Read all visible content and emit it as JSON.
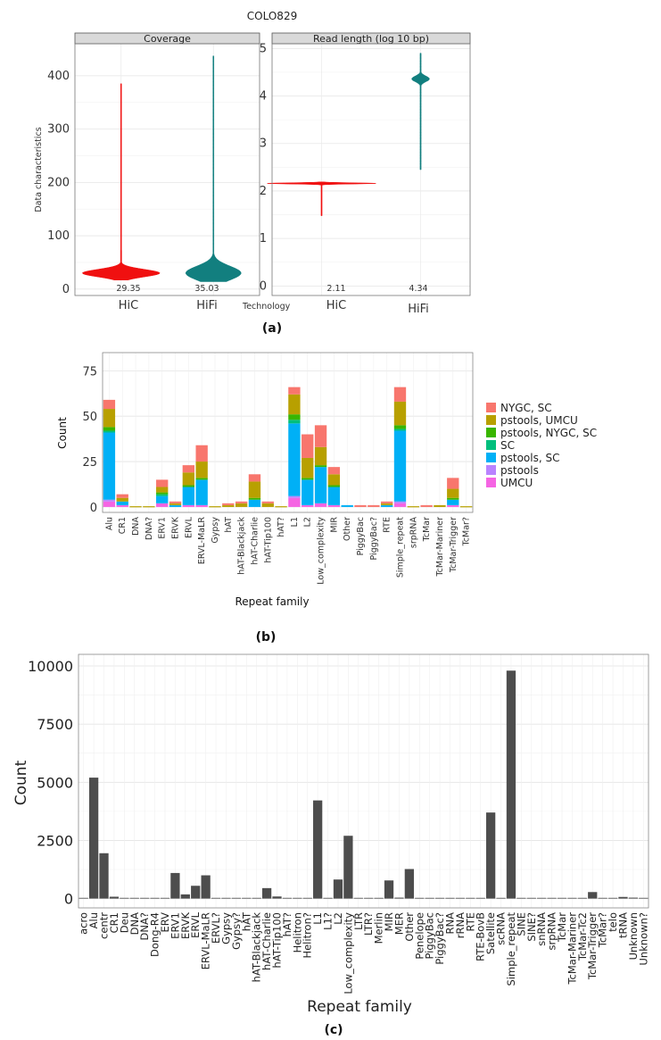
{
  "figure_title": "COLO829",
  "panel_labels": [
    "(a)",
    "(b)",
    "(c)"
  ],
  "chart_data": [
    {
      "id": "a1",
      "type": "violin",
      "strip_title": "Coverage",
      "ylabel": "Data characteristics",
      "xlabel": "Technology",
      "ylim": [
        -12,
        460
      ],
      "yticks": [
        0,
        100,
        200,
        300,
        400
      ],
      "categories": [
        "HiC",
        "HiFi"
      ],
      "colors": [
        "#f01010",
        "#127f7f"
      ],
      "medians": [
        "29.35",
        "35.03"
      ],
      "violins": [
        {
          "name": "HiC",
          "min": 17,
          "max": 385,
          "mode": 30,
          "halfwidth": 0.42,
          "spread": 7
        },
        {
          "name": "HiFi",
          "min": 14,
          "max": 437,
          "mode": 30,
          "halfwidth": 0.3,
          "spread": 13
        }
      ]
    },
    {
      "id": "a2",
      "type": "violin",
      "strip_title": "Read length (log 10 bp)",
      "ylim": [
        -0.2,
        5.1
      ],
      "yticks": [
        0,
        1,
        2,
        3,
        4,
        5
      ],
      "categories": [
        "HiC",
        "HiFi"
      ],
      "colors": [
        "#f01010",
        "#127f7f"
      ],
      "medians": [
        "2.11",
        "4.34"
      ],
      "violins": [
        {
          "name": "HiC",
          "min": 1.48,
          "max": 2.19,
          "mode": 2.16,
          "halfwidth": 0.55,
          "spread": 0.012
        },
        {
          "name": "HiFi",
          "min": 2.45,
          "max": 4.9,
          "mode": 4.36,
          "halfwidth": 0.09,
          "spread": 0.06
        }
      ]
    },
    {
      "id": "b",
      "type": "bar",
      "stacked": true,
      "xlabel": "Repeat family",
      "ylabel": "Count",
      "ylim": [
        -3,
        85
      ],
      "yticks": [
        0,
        25,
        50,
        75
      ],
      "categories": [
        "Alu",
        "CR1",
        "DNA",
        "DNA?",
        "ERV1",
        "ERVK",
        "ERVL",
        "ERVL-MaLR",
        "Gypsy",
        "hAT",
        "hAT-Blackjack",
        "hAT-Charlie",
        "hAT-Tip100",
        "hAT?",
        "L1",
        "L2",
        "Low_complexity",
        "MIR",
        "Other",
        "PiggyBac",
        "PiggyBac?",
        "RTE",
        "Simple_repeat",
        "srpRNA",
        "TcMar",
        "TcMar-Mariner",
        "TcMar-Trigger",
        "TcMar?"
      ],
      "legend_position": "right",
      "legend_labels": [
        "NYGC, SC",
        "pstools, UMCU",
        "pstools, NYGC, SC",
        "SC",
        "pstools, SC",
        "pstools",
        "UMCU"
      ],
      "series": [
        {
          "name": "UMCU",
          "color": "#f564e3",
          "values": [
            3,
            1,
            0,
            0,
            2,
            0,
            1,
            1,
            0,
            0,
            0,
            0,
            0,
            0,
            5,
            1,
            2,
            1,
            0,
            0,
            0,
            0,
            2,
            0,
            0,
            0,
            1,
            0
          ]
        },
        {
          "name": "pstools",
          "color": "#b983ff",
          "values": [
            1,
            0,
            0,
            0,
            0,
            0,
            0,
            0,
            0,
            0,
            0,
            0,
            0,
            0,
            1,
            0,
            0,
            0,
            0,
            0,
            0,
            0,
            1,
            0,
            0,
            0,
            0,
            0
          ]
        },
        {
          "name": "pstools, SC",
          "color": "#00b0f6",
          "values": [
            37,
            2,
            0,
            0,
            4,
            1,
            10,
            14,
            0,
            0,
            0,
            4,
            0,
            0,
            40,
            14,
            20,
            10,
            1,
            0,
            0,
            1,
            39,
            0,
            0,
            0,
            3,
            0
          ]
        },
        {
          "name": "SC",
          "color": "#00bf7d",
          "values": [
            1,
            0,
            0,
            0,
            1,
            0,
            0,
            0,
            0,
            0,
            0,
            0,
            0,
            0,
            2,
            0,
            0,
            0,
            0,
            0,
            0,
            0,
            1,
            0,
            0,
            0,
            0,
            0
          ]
        },
        {
          "name": "pstools, NYGC, SC",
          "color": "#39b600",
          "values": [
            2,
            0,
            0,
            0,
            1,
            0,
            1,
            1,
            0,
            0,
            0,
            1,
            0,
            0,
            3,
            1,
            1,
            1,
            0,
            0,
            0,
            0,
            2,
            0,
            0,
            0,
            1,
            0
          ]
        },
        {
          "name": "pstools, UMCU",
          "color": "#b8a000",
          "values": [
            10,
            2,
            0,
            0,
            3,
            1,
            7,
            9,
            0,
            1,
            2,
            9,
            2,
            0,
            11,
            11,
            10,
            6,
            0,
            0,
            0,
            1,
            13,
            0,
            0,
            1,
            5,
            0
          ]
        },
        {
          "name": "NYGC, SC",
          "color": "#f8766d",
          "values": [
            5,
            2,
            0,
            0,
            4,
            1,
            4,
            9,
            0,
            1,
            1,
            4,
            1,
            0,
            4,
            13,
            12,
            4,
            0,
            1,
            1,
            1,
            8,
            0,
            1,
            0,
            6,
            0
          ]
        }
      ]
    },
    {
      "id": "c",
      "type": "bar",
      "xlabel": "Repeat family",
      "ylabel": "Count",
      "ylim": [
        -400,
        10500
      ],
      "yticks": [
        0,
        2500,
        5000,
        7500,
        10000
      ],
      "bar_color": "#4d4d4d",
      "categories": [
        "acro",
        "Alu",
        "centr",
        "CR1",
        "Deu",
        "DNA",
        "DNA?",
        "Dong-R4",
        "ERV",
        "ERV1",
        "ERVK",
        "ERVL",
        "ERVL-MaLR",
        "ERVL?",
        "Gypsy",
        "Gypsy?",
        "hAT",
        "hAT-Blackjack",
        "hAT-Charlie",
        "hAT-Tip100",
        "hAT?",
        "Helitron",
        "Helitron?",
        "L1",
        "L1?",
        "L2",
        "Low_complexity",
        "LTR",
        "LTR?",
        "Merlin",
        "MIR",
        "MER",
        "Other",
        "Penelope",
        "PiggyBac",
        "PiggyBac?",
        "RNA",
        "rRNA",
        "RTE",
        "RTE-BovB",
        "Satellite",
        "scRNA",
        "Simple_repeat",
        "SINE",
        "SINE?",
        "snRNA",
        "srpRNA",
        "TcMar",
        "TcMar-Mariner",
        "TcMar-Tc2",
        "TcMar-Trigger",
        "TcMar?",
        "telo",
        "tRNA",
        "Unknown",
        "Unknown?"
      ],
      "values": [
        10,
        5200,
        1950,
        80,
        5,
        30,
        5,
        5,
        10,
        1100,
        180,
        550,
        1000,
        10,
        5,
        5,
        10,
        30,
        450,
        90,
        10,
        10,
        5,
        4220,
        20,
        820,
        2700,
        15,
        5,
        5,
        780,
        40,
        1270,
        5,
        5,
        5,
        10,
        10,
        20,
        15,
        3700,
        5,
        9800,
        5,
        5,
        10,
        20,
        5,
        30,
        15,
        280,
        15,
        5,
        70,
        40,
        10
      ]
    }
  ]
}
